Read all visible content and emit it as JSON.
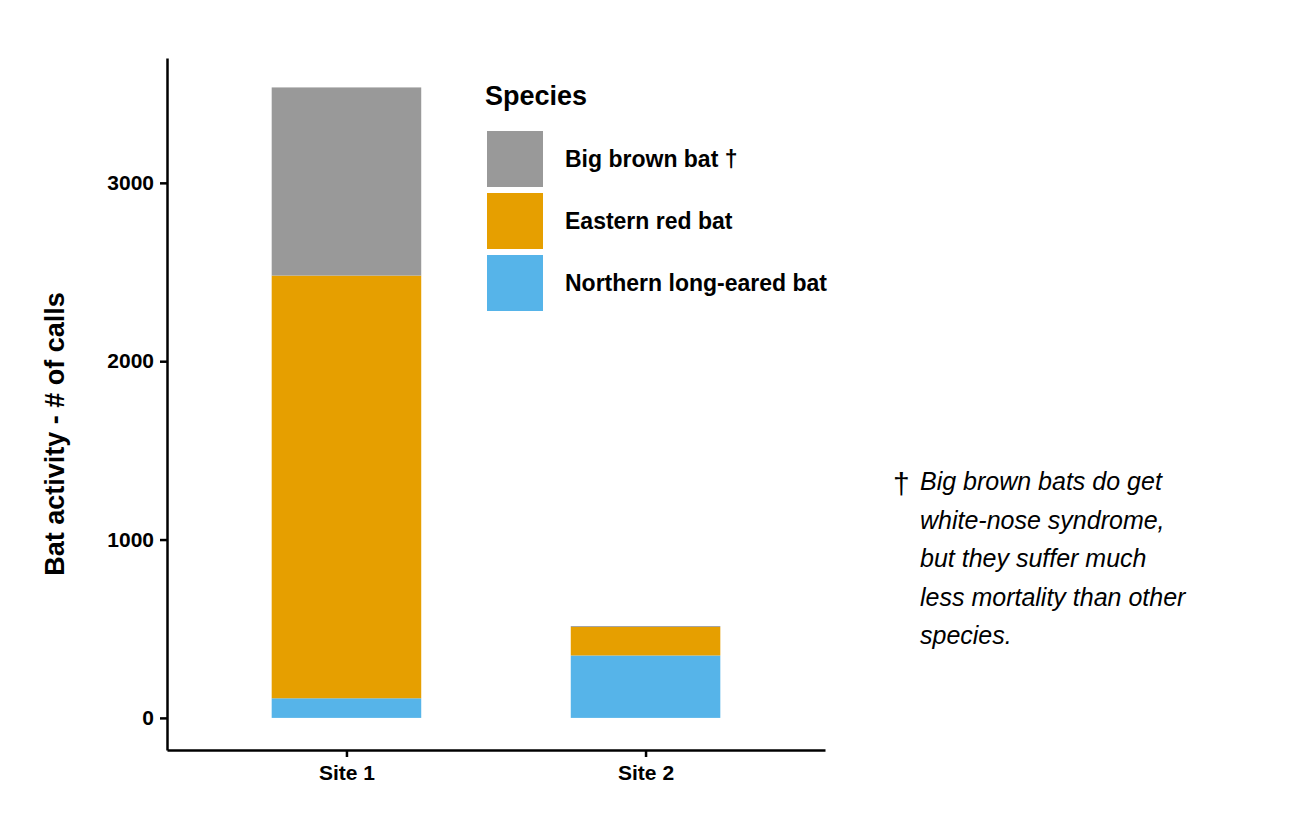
{
  "chart_data": {
    "type": "bar",
    "stacked": true,
    "y_label": "Bat activity - # of calls",
    "categories": [
      "Site 1",
      "Site 2"
    ],
    "series": [
      {
        "name": "Northern long-eared bat",
        "color": "#56B4E9",
        "values": [
          110,
          350
        ]
      },
      {
        "name": "Eastern red bat",
        "color": "#E69F00",
        "values": [
          2370,
          160
        ]
      },
      {
        "name": "Big brown bat †",
        "color": "#999999",
        "values": [
          1055,
          5
        ]
      }
    ],
    "ylim": [
      -180,
      3700
    ],
    "yticks": [
      0,
      1000,
      2000,
      3000
    ],
    "legend": "top-right",
    "legend_title": "Species",
    "footnote": {
      "symbol": "†",
      "lines": [
        "Big brown bats do get",
        "white-nose syndrome,",
        "but they suffer much",
        "less mortality than other",
        "species."
      ]
    }
  }
}
